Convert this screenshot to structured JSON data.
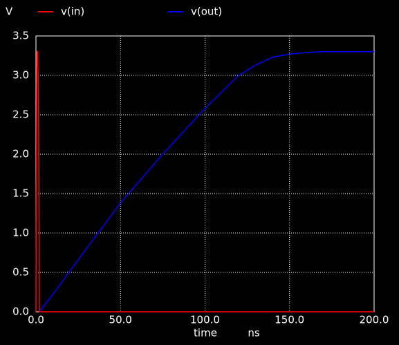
{
  "chart_data": {
    "type": "line",
    "y_label": "V",
    "x_label": "time",
    "x_unit": "ns",
    "series": [
      {
        "name": "v(in)",
        "color": "#ff0000",
        "x": [
          0,
          0.5,
          1.0,
          1.5,
          2.0,
          200
        ],
        "values": [
          0,
          3.3,
          3.3,
          2.8,
          0,
          0
        ]
      },
      {
        "name": "v(out)",
        "color": "#0000ff",
        "x": [
          2,
          10,
          25,
          50,
          75,
          100,
          120,
          130,
          140,
          150,
          160,
          170,
          200
        ],
        "values": [
          0,
          0.22,
          0.66,
          1.38,
          2.0,
          2.58,
          3.0,
          3.13,
          3.23,
          3.27,
          3.29,
          3.3,
          3.3
        ]
      }
    ],
    "xlim": [
      0,
      200
    ],
    "ylim": [
      0,
      3.5
    ],
    "xticks": [
      {
        "value": 0,
        "label": "0.0"
      },
      {
        "value": 50,
        "label": "50.0"
      },
      {
        "value": 100,
        "label": "100.0"
      },
      {
        "value": 150,
        "label": "150.0"
      },
      {
        "value": 200,
        "label": "200.0"
      }
    ],
    "yticks": [
      {
        "value": 0,
        "label": "0.0"
      },
      0.5,
      {
        "value": 1,
        "label": "1.0"
      },
      1.5,
      {
        "value": 2,
        "label": "2.0"
      },
      2.5,
      {
        "value": 3,
        "label": "3.0"
      },
      3.5
    ],
    "grid": true
  }
}
